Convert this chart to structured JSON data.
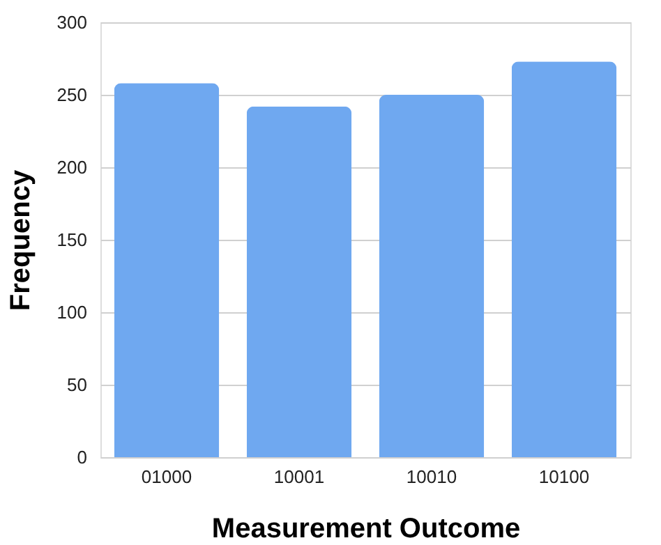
{
  "chart_data": {
    "type": "bar",
    "xlabel": "Measurement Outcome",
    "ylabel": "Frequency",
    "categories": [
      "01000",
      "10001",
      "10010",
      "10100"
    ],
    "values": [
      258,
      242,
      250,
      273
    ],
    "color": "#6fa8f0",
    "ylim": [
      0,
      300
    ],
    "yticks": [
      0,
      50,
      100,
      150,
      200,
      250,
      300
    ],
    "grid": "y"
  }
}
